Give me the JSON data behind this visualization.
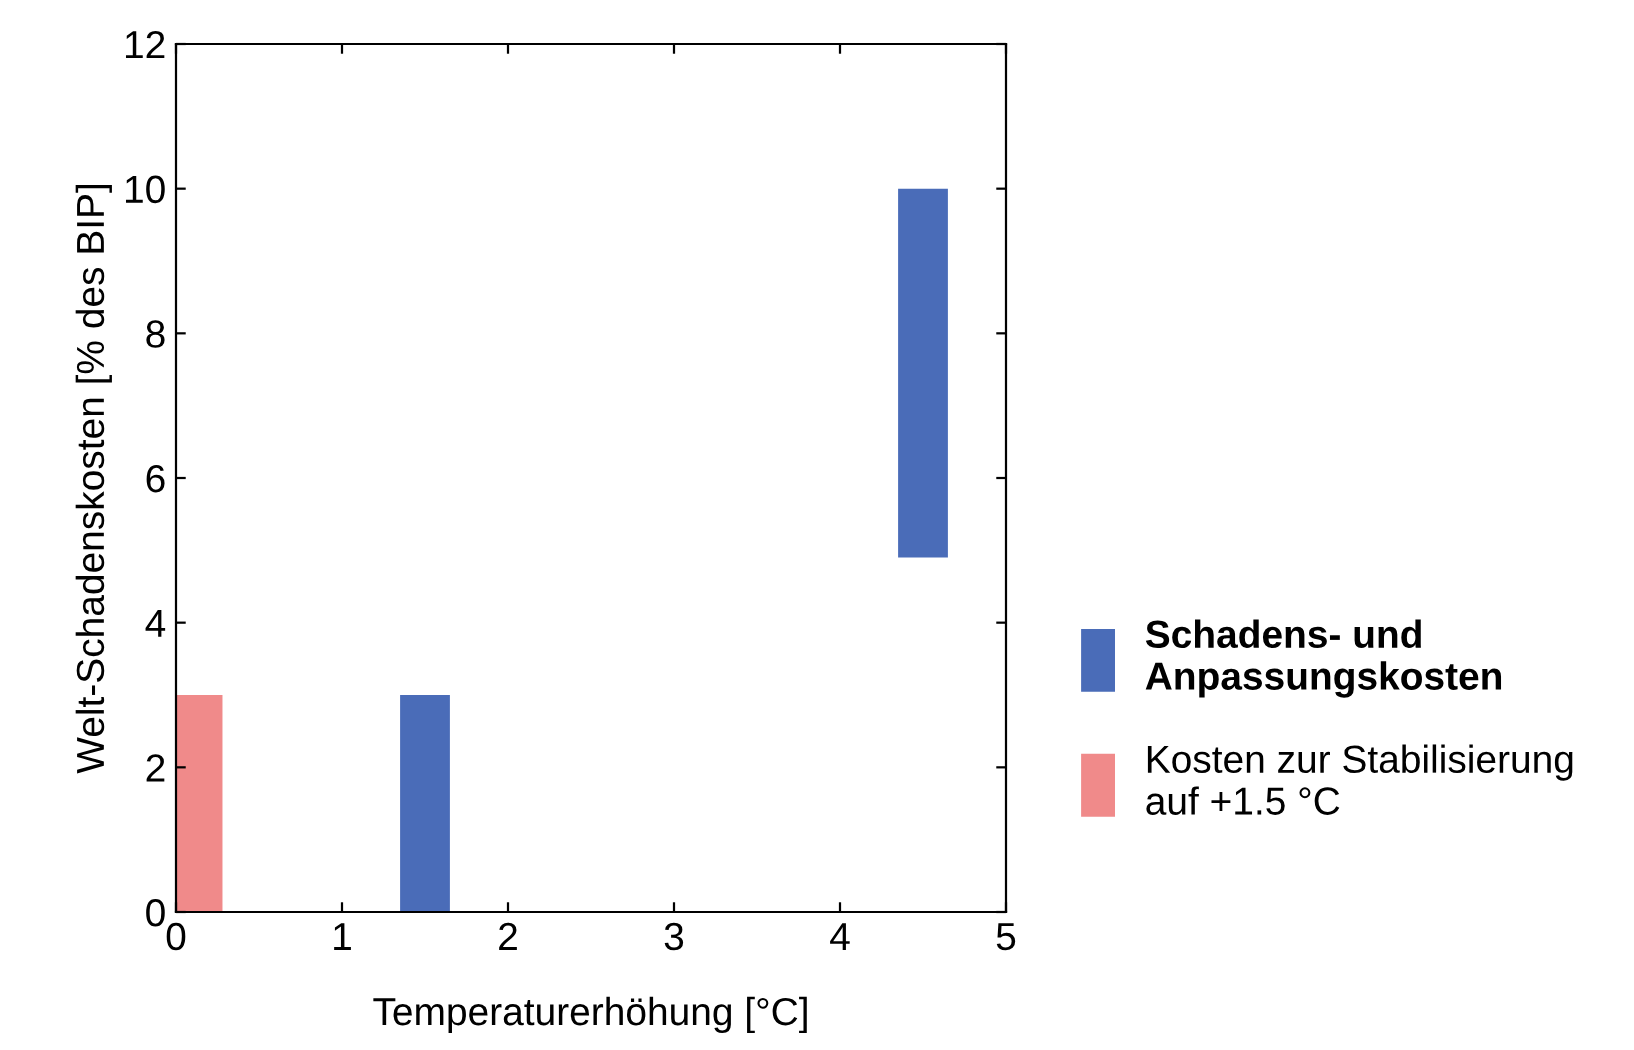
{
  "chart_data": {
    "type": "bar",
    "xlabel": "Temperaturerhöhung [°C]",
    "ylabel": "Welt-Schadenskosten [% des BIP]",
    "series": [
      {
        "name": "Schadens- und\nAnpassungskosten",
        "color": "#4a6cb8",
        "x": [
          1.5,
          4.5
        ],
        "values": [
          3.0,
          5.1
        ],
        "base": [
          0,
          4.9
        ]
      },
      {
        "name": "Kosten zur Stabilisierung\nauf +1.5 °C",
        "color": "#f08a8a",
        "x": [
          0.13
        ],
        "values": [
          3.0
        ],
        "base": [
          0
        ]
      }
    ],
    "xlim": [
      0,
      5
    ],
    "xticks": [
      0,
      1,
      2,
      3,
      4,
      5
    ],
    "ylim": [
      0,
      12
    ],
    "yticks": [
      0,
      2,
      4,
      6,
      8,
      10,
      12
    ],
    "grid": false,
    "legend": "right"
  }
}
